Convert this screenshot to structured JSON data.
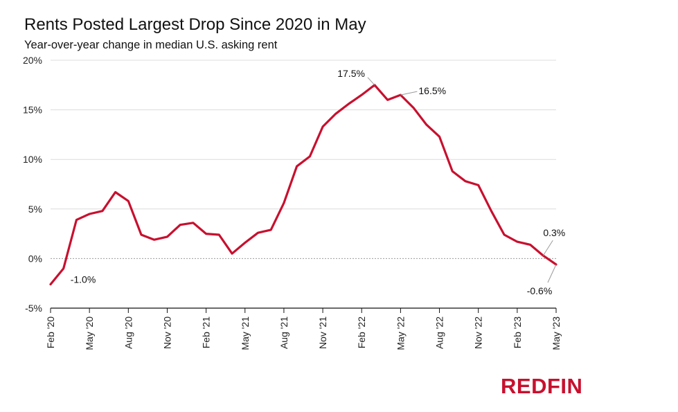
{
  "chart_data": {
    "type": "line",
    "title": "Rents Posted Largest Drop Since 2020 in May",
    "subtitle": "Year-over-year change in median U.S. asking rent",
    "xlabel": "",
    "ylabel": "",
    "ylim": [
      -5,
      20
    ],
    "yticks": [
      -5,
      0,
      5,
      10,
      15,
      20
    ],
    "ytick_labels": [
      "-5%",
      "0%",
      "5%",
      "10%",
      "15%",
      "20%"
    ],
    "xtick_labels": [
      "Feb '20",
      "May '20",
      "Aug '20",
      "Nov '20",
      "Feb '21",
      "May '21",
      "Aug '21",
      "Nov '21",
      "Feb '22",
      "May '22",
      "Aug '22",
      "Nov '22",
      "Feb '23",
      "May '23"
    ],
    "grid": true,
    "series_color": "#c8102e",
    "x": [
      "Feb '20",
      "Mar '20",
      "Apr '20",
      "May '20",
      "Jun '20",
      "Jul '20",
      "Aug '20",
      "Sep '20",
      "Oct '20",
      "Nov '20",
      "Dec '20",
      "Jan '21",
      "Feb '21",
      "Mar '21",
      "Apr '21",
      "May '21",
      "Jun '21",
      "Jul '21",
      "Aug '21",
      "Sep '21",
      "Oct '21",
      "Nov '21",
      "Dec '21",
      "Jan '22",
      "Feb '22",
      "Mar '22",
      "Apr '22",
      "May '22",
      "Jun '22",
      "Jul '22",
      "Aug '22",
      "Sep '22",
      "Oct '22",
      "Nov '22",
      "Dec '22",
      "Jan '23",
      "Feb '23",
      "Mar '23",
      "Apr '23",
      "May '23"
    ],
    "series": [
      {
        "values": [
          -2.6,
          -1.0,
          3.9,
          4.5,
          4.8,
          6.7,
          5.8,
          2.4,
          1.9,
          2.2,
          3.4,
          3.6,
          2.5,
          2.4,
          0.5,
          1.6,
          2.6,
          2.9,
          5.6,
          9.3,
          10.3,
          13.3,
          14.6,
          15.6,
          16.5,
          17.5,
          16.0,
          16.5,
          15.2,
          13.5,
          12.3,
          8.8,
          7.8,
          7.4,
          4.8,
          2.4,
          1.7,
          1.4,
          0.3,
          -0.6
        ]
      }
    ],
    "annotations": [
      {
        "index": 1,
        "text": "-1.0%"
      },
      {
        "index": 25,
        "text": "17.5%"
      },
      {
        "index": 27,
        "text": "16.5%"
      },
      {
        "index": 38,
        "text": "0.3%"
      },
      {
        "index": 39,
        "text": "-0.6%"
      }
    ]
  },
  "brand": {
    "logo_text": "REDFIN",
    "logo_color": "#c8102e"
  }
}
